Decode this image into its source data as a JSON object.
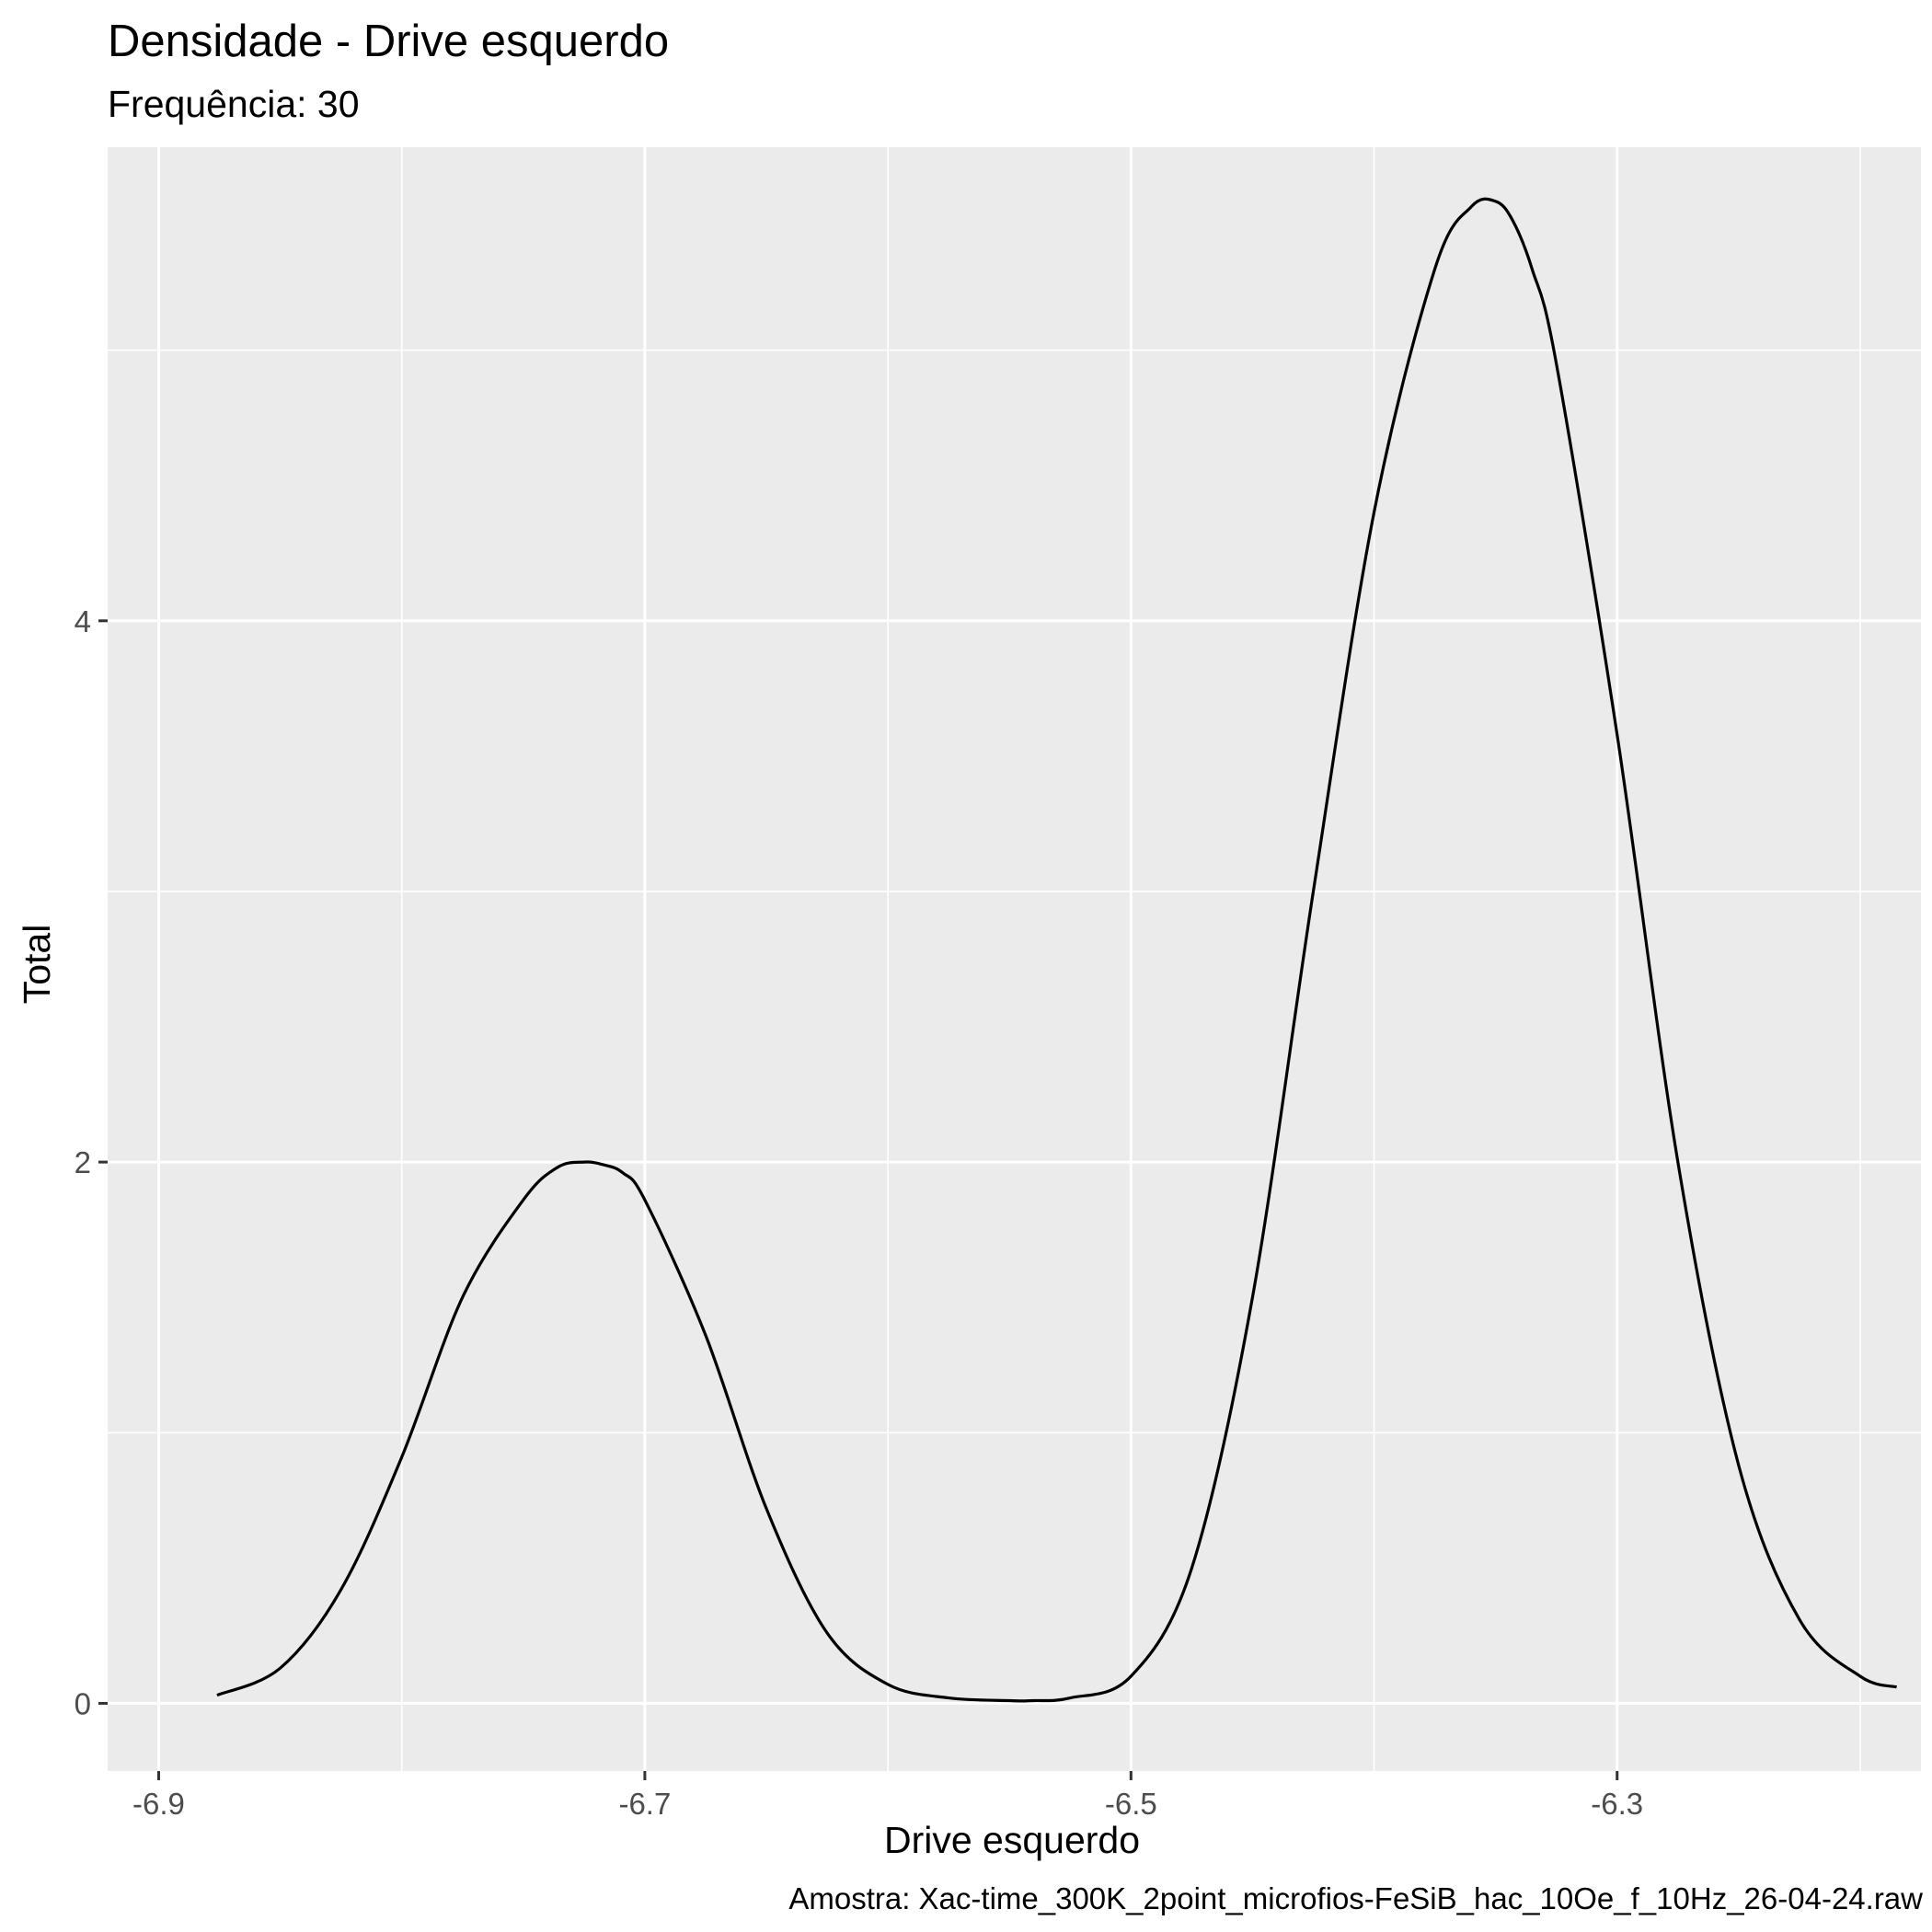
{
  "chart_data": {
    "type": "line",
    "title": "Densidade - Drive esquerdo",
    "subtitle": "Frequência: 30",
    "xlabel": "Drive esquerdo",
    "ylabel": "Total",
    "caption": "Amostra: Xac-time_300K_2point_microfios-FeSiB_hac_10Oe_f_10Hz_26-04-24.raw",
    "xlim": [
      -6.921,
      -6.175
    ],
    "ylim": [
      -0.25,
      5.75
    ],
    "x_ticks": [
      -6.9,
      -6.7,
      -6.5,
      -6.3
    ],
    "x_tick_labels": [
      "-6.9",
      "-6.7",
      "-6.5",
      "-6.3"
    ],
    "y_ticks": [
      0,
      2,
      4
    ],
    "y_tick_labels": [
      "0",
      "2",
      "4"
    ],
    "grid": true,
    "background": "#EBEBEB",
    "grid_color": "#FFFFFF",
    "line_color": "#000000",
    "series": [
      {
        "x": [
          -6.876,
          -6.85,
          -6.825,
          -6.8,
          -6.775,
          -6.75,
          -6.736,
          -6.725,
          -6.717,
          -6.709,
          -6.7,
          -6.675,
          -6.65,
          -6.625,
          -6.6,
          -6.575,
          -6.55,
          -6.54,
          -6.525,
          -6.5,
          -6.475,
          -6.45,
          -6.425,
          -6.4,
          -6.375,
          -6.36,
          -6.35,
          -6.343,
          -6.335,
          -6.325,
          -6.3,
          -6.275,
          -6.25,
          -6.225,
          -6.2,
          -6.185
        ],
        "y": [
          0.03,
          0.13,
          0.42,
          0.91,
          1.5,
          1.86,
          1.98,
          2.0,
          1.99,
          1.96,
          1.86,
          1.36,
          0.72,
          0.26,
          0.07,
          0.02,
          0.01,
          0.01,
          0.02,
          0.1,
          0.5,
          1.5,
          3.0,
          4.4,
          5.3,
          5.53,
          5.55,
          5.48,
          5.3,
          4.95,
          3.58,
          2.0,
          0.88,
          0.31,
          0.1,
          0.06
        ]
      }
    ]
  }
}
